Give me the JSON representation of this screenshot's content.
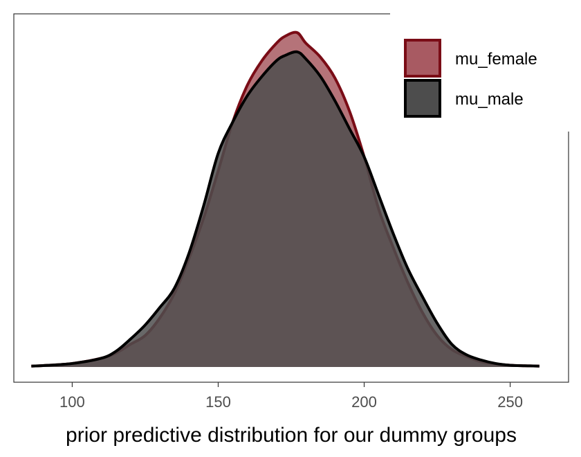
{
  "chart_data": {
    "type": "area",
    "title": "",
    "xlabel": "prior predictive distribution for our dummy groups",
    "ylabel": "",
    "xlim": [
      80,
      270
    ],
    "ylim": [
      0,
      0.0193
    ],
    "xticks": [
      100,
      150,
      200,
      250
    ],
    "y_tick_labels_shown": false,
    "grid": false,
    "legend_position": "top-right",
    "series": [
      {
        "name": "mu_female",
        "fill": "#a85a62",
        "stroke": "#7a0c16",
        "x": [
          86,
          90,
          100,
          110,
          115,
          120,
          125,
          130,
          135,
          140,
          145,
          150,
          155,
          160,
          165,
          170,
          173,
          177,
          180,
          185,
          190,
          195,
          200,
          205,
          210,
          215,
          220,
          225,
          230,
          235,
          240,
          245,
          250,
          255,
          260
        ],
        "y": [
          5e-05,
          8e-05,
          0.0002,
          0.0005,
          0.0008,
          0.0013,
          0.0018,
          0.0028,
          0.0042,
          0.0062,
          0.0085,
          0.0112,
          0.014,
          0.0161,
          0.0175,
          0.0185,
          0.0189,
          0.0191,
          0.0185,
          0.0177,
          0.0165,
          0.0146,
          0.012,
          0.009,
          0.0068,
          0.0048,
          0.0031,
          0.0018,
          0.001,
          0.0006,
          0.0003,
          0.00018,
          0.0001,
          7e-05,
          5e-05
        ]
      },
      {
        "name": "mu_male",
        "fill": "#4d4d4d",
        "stroke": "#000000",
        "x": [
          86,
          90,
          100,
          110,
          115,
          120,
          125,
          130,
          135,
          140,
          145,
          150,
          155,
          160,
          165,
          170,
          173,
          177,
          180,
          185,
          190,
          195,
          200,
          205,
          210,
          215,
          220,
          225,
          230,
          235,
          240,
          245,
          250,
          255,
          260
        ],
        "y": [
          5e-05,
          8e-05,
          0.0002,
          0.0005,
          0.0009,
          0.0016,
          0.0024,
          0.0034,
          0.0045,
          0.0065,
          0.0092,
          0.0122,
          0.014,
          0.0155,
          0.0166,
          0.0175,
          0.0178,
          0.018,
          0.0176,
          0.0166,
          0.0152,
          0.0136,
          0.012,
          0.0098,
          0.0076,
          0.0056,
          0.004,
          0.0025,
          0.0013,
          0.0007,
          0.0004,
          0.0002,
          0.0001,
          7e-05,
          5e-05
        ]
      }
    ]
  }
}
